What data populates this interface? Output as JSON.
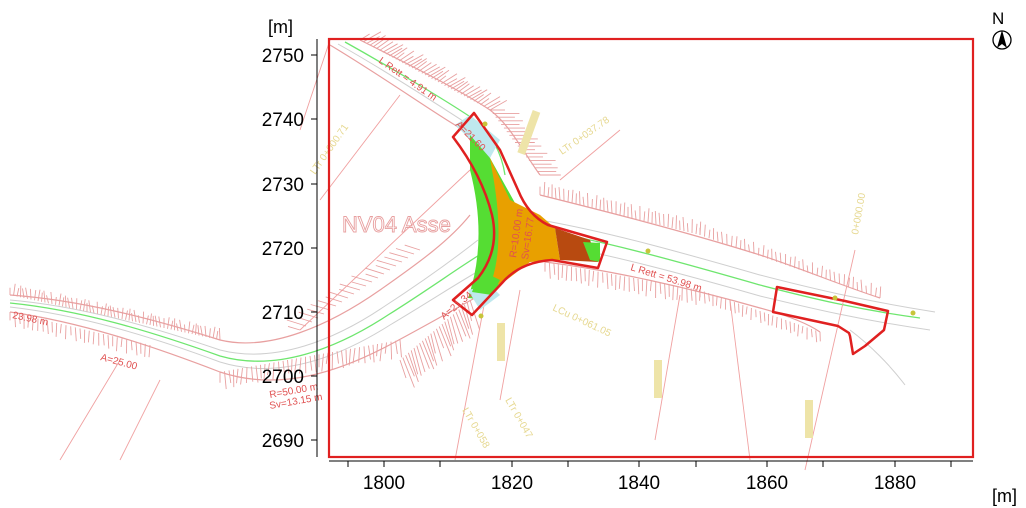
{
  "axes": {
    "y_unit": "[m]",
    "x_unit": "[m]",
    "y_ticks": [
      "2750",
      "2740",
      "2730",
      "2720",
      "2710",
      "2700",
      "2690"
    ],
    "x_ticks": [
      "1800",
      "1820",
      "1840",
      "1860",
      "1880"
    ]
  },
  "north_arrow": {
    "letter": "N",
    "icon": "north-arrow-icon"
  },
  "labels": {
    "axis_name": "NV04 Asse",
    "l_rett_top": "L Rett = 4.91 m",
    "l_rett_right": "L Rett = 53.98 m",
    "a_top": "A=21.60",
    "r_center": "R=10.00 m",
    "sv_center": "Sv=16.77",
    "a_bottom": "A=21.34",
    "l_left": "23.98 m",
    "a_left": "A=25.00",
    "r_bottom": "R=50.00 m",
    "sv_bottom": "Sv=13.15 m",
    "yellow_1": "LTr 0+037.78",
    "yellow_2": "LTr 0+000.71",
    "yellow_3": "LCu 0+061.05",
    "yellow_4": "0+000.00",
    "yellow_5": "LTr 0+058",
    "yellow_6": "LTr 0+047"
  },
  "colors": {
    "frame": "#e02020",
    "road_edge": "#e8a0a0",
    "centerline": "#6ee66e",
    "fill_green": "#55dd33",
    "fill_orange": "#e8a000",
    "fill_brown": "#b84a10",
    "fill_cyan": "#bfe8ee"
  }
}
